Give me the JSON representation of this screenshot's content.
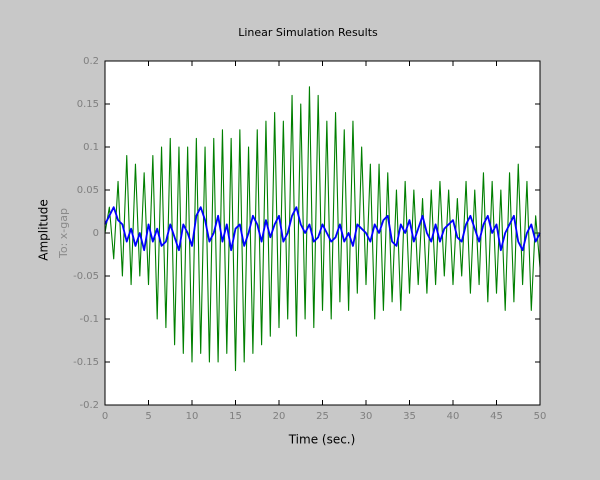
{
  "chart_data": {
    "type": "line",
    "title": "Linear Simulation Results",
    "xlabel": "Time (sec.)",
    "ylabel": "Amplitude",
    "output_label": "To: x-gap",
    "xlim": [
      0,
      50
    ],
    "ylim": [
      -0.2,
      0.2
    ],
    "xticks": [
      0,
      5,
      10,
      15,
      20,
      25,
      30,
      35,
      40,
      45,
      50
    ],
    "yticks": [
      -0.2,
      -0.15,
      -0.1,
      -0.05,
      0,
      0.05,
      0.1,
      0.15,
      0.2
    ],
    "grid": false,
    "x": [
      0,
      0.5,
      1,
      1.5,
      2,
      2.5,
      3,
      3.5,
      4,
      4.5,
      5,
      5.5,
      6,
      6.5,
      7,
      7.5,
      8,
      8.5,
      9,
      9.5,
      10,
      10.5,
      11,
      11.5,
      12,
      12.5,
      13,
      13.5,
      14,
      14.5,
      15,
      15.5,
      16,
      16.5,
      17,
      17.5,
      18,
      18.5,
      19,
      19.5,
      20,
      20.5,
      21,
      21.5,
      22,
      22.5,
      23,
      23.5,
      24,
      24.5,
      25,
      25.5,
      26,
      26.5,
      27,
      27.5,
      28,
      28.5,
      29,
      29.5,
      30,
      30.5,
      31,
      31.5,
      32,
      32.5,
      33,
      33.5,
      34,
      34.5,
      35,
      35.5,
      36,
      36.5,
      37,
      37.5,
      38,
      38.5,
      39,
      39.5,
      40,
      40.5,
      41,
      41.5,
      42,
      42.5,
      43,
      43.5,
      44,
      44.5,
      45,
      45.5,
      46,
      46.5,
      47,
      47.5,
      48,
      48.5,
      49,
      49.5,
      50
    ],
    "series": [
      {
        "color": "#007f00",
        "values": [
          0,
          0.03,
          -0.03,
          0.06,
          -0.05,
          0.09,
          -0.06,
          0.08,
          -0.05,
          0.07,
          -0.06,
          0.09,
          -0.1,
          0.1,
          -0.11,
          0.11,
          -0.13,
          0.1,
          -0.14,
          0.1,
          -0.15,
          0.11,
          -0.14,
          0.1,
          -0.15,
          0.11,
          -0.15,
          0.12,
          -0.14,
          0.11,
          -0.16,
          0.12,
          -0.15,
          0.1,
          -0.14,
          0.12,
          -0.13,
          0.13,
          -0.12,
          0.14,
          -0.11,
          0.13,
          -0.1,
          0.16,
          -0.12,
          0.15,
          -0.1,
          0.17,
          -0.11,
          0.16,
          -0.09,
          0.13,
          -0.1,
          0.14,
          -0.08,
          0.12,
          -0.09,
          0.13,
          -0.07,
          0.1,
          -0.06,
          0.08,
          -0.1,
          0.08,
          -0.09,
          0.07,
          -0.08,
          0.05,
          -0.09,
          0.06,
          -0.07,
          0.05,
          -0.06,
          0.04,
          -0.07,
          0.05,
          -0.06,
          0.06,
          -0.05,
          0.05,
          -0.06,
          0.04,
          -0.05,
          0.06,
          -0.07,
          0.05,
          -0.06,
          0.07,
          -0.08,
          0.06,
          -0.07,
          0.05,
          -0.09,
          0.07,
          -0.08,
          0.08,
          -0.06,
          0.06,
          -0.09,
          0.02,
          -0.04
        ]
      },
      {
        "color": "#0000ff",
        "values": [
          0.01,
          0.02,
          0.03,
          0.015,
          0.01,
          -0.01,
          0.005,
          -0.015,
          0,
          -0.02,
          0.01,
          -0.01,
          0.005,
          -0.015,
          -0.01,
          0.01,
          -0.005,
          -0.02,
          0.01,
          0,
          -0.015,
          0.02,
          0.03,
          0.015,
          -0.01,
          0,
          0.02,
          -0.01,
          0.01,
          -0.02,
          0.005,
          0.01,
          -0.015,
          0,
          0.02,
          0.01,
          -0.01,
          0.015,
          -0.005,
          0.01,
          0.02,
          -0.01,
          0,
          0.02,
          0.03,
          0.01,
          0,
          0.01,
          -0.01,
          -0.005,
          0.01,
          0,
          -0.01,
          -0.005,
          0.01,
          -0.01,
          0,
          -0.015,
          0.01,
          0.005,
          0,
          -0.01,
          0.01,
          0,
          0.015,
          0.02,
          -0.01,
          -0.015,
          0.01,
          0,
          0.015,
          -0.01,
          0.005,
          0.02,
          0,
          -0.01,
          0.01,
          -0.01,
          0.005,
          0.01,
          0.015,
          -0.005,
          -0.01,
          0.01,
          0.02,
          0.005,
          -0.01,
          0.01,
          0.02,
          0,
          0.01,
          -0.02,
          0,
          0.01,
          0.02,
          -0.01,
          -0.02,
          0,
          0.01,
          -0.01,
          0
        ]
      }
    ]
  }
}
